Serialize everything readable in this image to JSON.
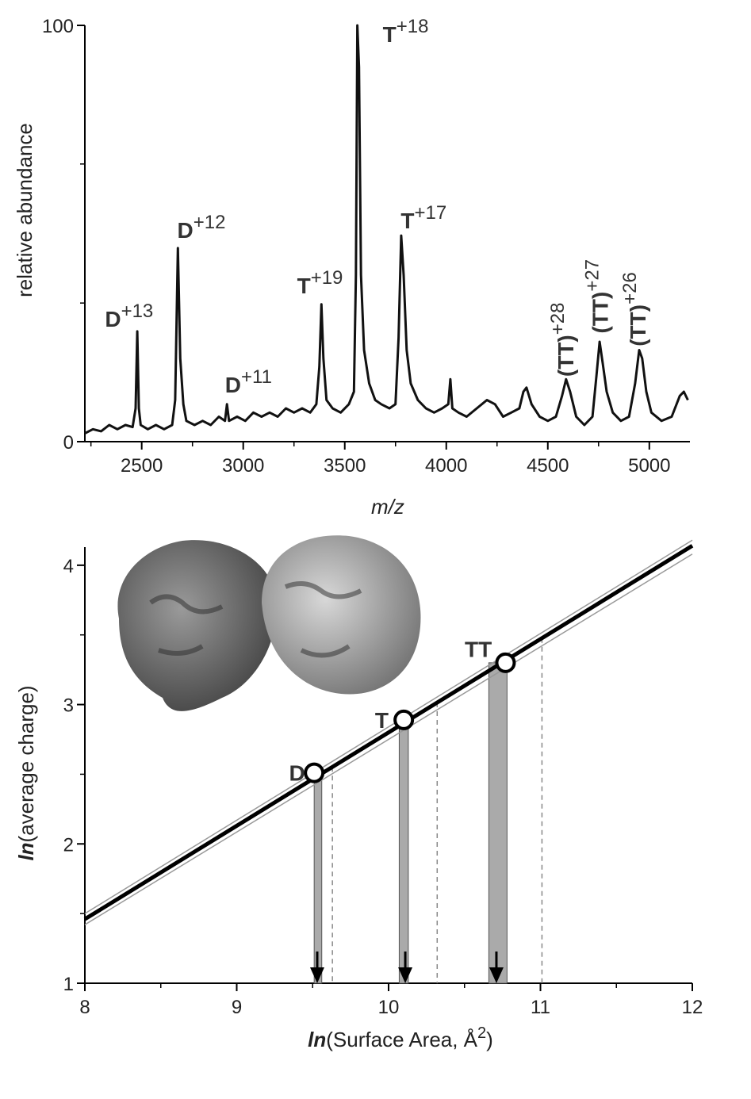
{
  "chart_data": [
    {
      "type": "line",
      "ylabel": "relative abundance",
      "xlabel": "m/z",
      "xlim": [
        2220,
        5200
      ],
      "xticks": [
        2500,
        3000,
        3500,
        4000,
        4500,
        5000
      ],
      "xminorticks": [
        2250,
        2750,
        3250,
        3750,
        4250,
        4750
      ],
      "ylim": [
        0,
        100
      ],
      "yticks": [
        0,
        100
      ],
      "yminorticks": [
        33.3,
        66.7
      ],
      "color": "#111111",
      "x": [
        2220,
        2260,
        2300,
        2340,
        2380,
        2420,
        2455,
        2470,
        2478,
        2486,
        2495,
        2530,
        2570,
        2610,
        2650,
        2665,
        2678,
        2690,
        2705,
        2720,
        2760,
        2800,
        2840,
        2880,
        2910,
        2920,
        2930,
        2970,
        3010,
        3050,
        3090,
        3130,
        3170,
        3210,
        3250,
        3290,
        3330,
        3360,
        3375,
        3385,
        3395,
        3410,
        3440,
        3480,
        3520,
        3545,
        3555,
        3562,
        3570,
        3580,
        3595,
        3620,
        3650,
        3680,
        3720,
        3750,
        3765,
        3778,
        3790,
        3805,
        3825,
        3860,
        3900,
        3940,
        3980,
        4010,
        4020,
        4030,
        4060,
        4100,
        4150,
        4200,
        4240,
        4280,
        4320,
        4360,
        4380,
        4395,
        4420,
        4460,
        4500,
        4540,
        4570,
        4590,
        4610,
        4640,
        4680,
        4720,
        4740,
        4755,
        4770,
        4790,
        4820,
        4860,
        4900,
        4930,
        4950,
        4965,
        4985,
        5010,
        5060,
        5110,
        5150,
        5170,
        5190
      ],
      "values": [
        2,
        3,
        2.5,
        4,
        3,
        4,
        3.5,
        8,
        26.5,
        8,
        4,
        3,
        4,
        3,
        4,
        10,
        46.5,
        20,
        9,
        5,
        4,
        5,
        4,
        6,
        5,
        9,
        5,
        6,
        5,
        7,
        6,
        7,
        6,
        8,
        7,
        8,
        7,
        9,
        18,
        33,
        20,
        10,
        8,
        7,
        9,
        12,
        40,
        100,
        90,
        40,
        22,
        14,
        10,
        9,
        8,
        9,
        25,
        49.5,
        40,
        22,
        14,
        10,
        8,
        7,
        8,
        9,
        15,
        8,
        7,
        6,
        8,
        10,
        9,
        6,
        7,
        8,
        12,
        13,
        9,
        6,
        5,
        6,
        11,
        15,
        12,
        6,
        4,
        6,
        16,
        24,
        19,
        12,
        7,
        5,
        6,
        14,
        22,
        20,
        12,
        7,
        5,
        6,
        11,
        12,
        10
      ],
      "annotations": [
        {
          "text": "D",
          "sup": "+13",
          "x": 2438,
          "y": 27.6
        },
        {
          "text": "D",
          "sup": "+12",
          "x": 2794,
          "y": 49
        },
        {
          "text": "D",
          "sup": "+11",
          "x": 3026,
          "y": 11.8
        },
        {
          "text": "T",
          "sup": "+19",
          "x": 3378,
          "y": 35.6
        },
        {
          "text": "T",
          "sup": "+18",
          "x": 3800,
          "y": 96
        },
        {
          "text": "T",
          "sup": "+17",
          "x": 3889,
          "y": 51.2
        },
        {
          "text": "(TT)",
          "sup": "+28",
          "x": 4625,
          "y": 15.6,
          "rotated": true
        },
        {
          "text": "(TT)",
          "sup": "+27",
          "x": 4795,
          "y": 26,
          "rotated": true
        },
        {
          "text": "(TT)",
          "sup": "+26",
          "x": 4981,
          "y": 22.9,
          "rotated": true
        }
      ]
    },
    {
      "type": "scatter",
      "ylabel": {
        "prefix": "ln",
        "text": "(average charge)"
      },
      "xlabel": {
        "prefix": "ln",
        "text": "(Surface Area, Å",
        "sup": "2",
        "suffix": ")"
      },
      "xlim": [
        8,
        12
      ],
      "xticks": [
        8,
        9,
        10,
        11,
        12
      ],
      "xminorticks": [
        8.5,
        9.5,
        10.5,
        11.5
      ],
      "ylim": [
        1,
        4.13
      ],
      "yticks": [
        1,
        2,
        3,
        4
      ],
      "yminorticks": [
        1.5,
        2.5,
        3.5
      ],
      "fit": {
        "x": [
          8,
          12
        ],
        "y": [
          1.46,
          4.14
        ],
        "upper": [
          1.5,
          4.18
        ],
        "lower": [
          1.42,
          4.08
        ]
      },
      "labels": [
        "D",
        "T",
        "TT"
      ],
      "x": [
        9.51,
        10.1,
        10.77
      ],
      "values": [
        2.51,
        2.89,
        3.3
      ],
      "label_pos": {
        "x": [
          9.45,
          10.0,
          10.68
        ],
        "y": [
          2.51,
          2.89,
          3.4
        ]
      },
      "ranges": [
        [
          9.51,
          9.56
        ],
        [
          10.07,
          10.13
        ],
        [
          10.66,
          10.78
        ]
      ],
      "arrows": [
        9.53,
        10.11,
        10.71
      ],
      "dashed_x": [
        9.63,
        10.32,
        11.01
      ]
    }
  ]
}
